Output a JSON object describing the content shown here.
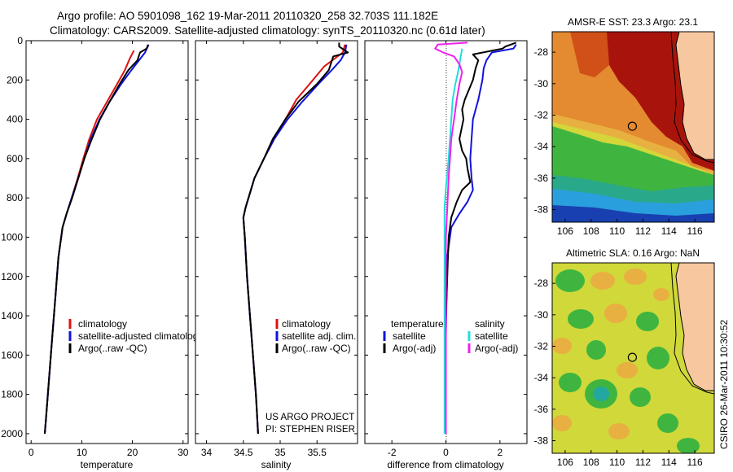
{
  "header": {
    "line1": "Argo profile: AO 5901098_162 19-Mar-2011 20110320_258 32.703S 111.182E",
    "line2": "Climatology: CARS2009. Satellite-adjusted climatology: synTS_20110320.nc (0.61d later)"
  },
  "colors": {
    "climatology": "#dd1111",
    "satellite": "#1111dd",
    "argo": "#000000",
    "argo_salinity_diff": "#ee22ee",
    "satellite_salinity_diff": "#22dddd",
    "land": "#f7c8a0"
  },
  "chart_data": [
    {
      "type": "line",
      "id": "temperature",
      "xlabel": "temperature",
      "xlim": [
        -1,
        31
      ],
      "ylim": [
        0,
        2050
      ],
      "y_reversed": true,
      "xticks": [
        0,
        10,
        20,
        30
      ],
      "yticks": [
        0,
        200,
        400,
        600,
        800,
        1000,
        1200,
        1400,
        1600,
        1800,
        2000
      ],
      "legend": [
        "climatology",
        "satellite-adjusted climatology",
        "Argo(..raw -QC)"
      ],
      "series": [
        {
          "name": "climatology",
          "color": "climatology",
          "points": [
            [
              20.3,
              50
            ],
            [
              19.5,
              90
            ],
            [
              18.5,
              150
            ],
            [
              17,
              220
            ],
            [
              15,
              310
            ],
            [
              13,
              400
            ],
            [
              11.5,
              500
            ],
            [
              10.3,
              600
            ],
            [
              9.2,
              700
            ],
            [
              8,
              800
            ],
            [
              7,
              880
            ],
            [
              6.2,
              950
            ],
            [
              5.4,
              1100
            ],
            [
              4.8,
              1300
            ],
            [
              4.2,
              1500
            ],
            [
              3.6,
              1700
            ],
            [
              3,
              1900
            ],
            [
              2.7,
              2000
            ]
          ]
        },
        {
          "name": "satellite-adjusted climatology",
          "color": "satellite",
          "points": [
            [
              23.2,
              20
            ],
            [
              22.5,
              60
            ],
            [
              21.3,
              100
            ],
            [
              19.8,
              150
            ],
            [
              17.8,
              220
            ],
            [
              15.5,
              310
            ],
            [
              13.5,
              400
            ],
            [
              11.8,
              500
            ],
            [
              10.5,
              600
            ],
            [
              9.3,
              700
            ],
            [
              8,
              800
            ],
            [
              7,
              880
            ],
            [
              6.2,
              950
            ],
            [
              5.4,
              1100
            ],
            [
              4.8,
              1300
            ],
            [
              4.2,
              1500
            ],
            [
              3.6,
              1700
            ],
            [
              3,
              1900
            ],
            [
              2.7,
              2000
            ]
          ]
        },
        {
          "name": "Argo(..raw -QC)",
          "color": "argo",
          "points": [
            [
              23.1,
              20
            ],
            [
              22.8,
              40
            ],
            [
              21.5,
              60
            ],
            [
              21,
              100
            ],
            [
              19.2,
              150
            ],
            [
              17.5,
              220
            ],
            [
              15.5,
              310
            ],
            [
              13.6,
              400
            ],
            [
              12,
              500
            ],
            [
              10.5,
              600
            ],
            [
              9.3,
              700
            ],
            [
              8.1,
              800
            ],
            [
              7,
              880
            ],
            [
              6.2,
              950
            ],
            [
              5.4,
              1100
            ],
            [
              4.8,
              1300
            ],
            [
              4.2,
              1500
            ],
            [
              3.6,
              1700
            ],
            [
              3,
              1900
            ],
            [
              2.7,
              2000
            ]
          ]
        }
      ]
    },
    {
      "type": "line",
      "id": "salinity",
      "xlabel": "salinity",
      "xlim": [
        33.85,
        36.05
      ],
      "ylim": [
        0,
        2050
      ],
      "y_reversed": true,
      "xticks": [
        34,
        34.5,
        35,
        35.5
      ],
      "legend": [
        "climatology",
        "satellite adj. clim.",
        "Argo(..raw -QC)"
      ],
      "annotations": [
        "US ARGO PROJECT",
        "PI: STEPHEN RISER"
      ],
      "series": [
        {
          "name": "climatology",
          "color": "climatology",
          "points": [
            [
              35.88,
              20
            ],
            [
              35.85,
              60
            ],
            [
              35.6,
              130
            ],
            [
              35.4,
              220
            ],
            [
              35.22,
              300
            ],
            [
              35.07,
              400
            ],
            [
              34.92,
              500
            ],
            [
              34.78,
              600
            ],
            [
              34.65,
              700
            ],
            [
              34.57,
              800
            ],
            [
              34.53,
              850
            ],
            [
              34.5,
              900
            ],
            [
              34.52,
              1000
            ],
            [
              34.55,
              1200
            ],
            [
              34.59,
              1400
            ],
            [
              34.63,
              1600
            ],
            [
              34.67,
              1800
            ],
            [
              34.7,
              2000
            ]
          ]
        },
        {
          "name": "satellite adj. clim.",
          "color": "satellite",
          "points": [
            [
              35.9,
              20
            ],
            [
              35.88,
              60
            ],
            [
              35.82,
              100
            ],
            [
              35.7,
              150
            ],
            [
              35.52,
              220
            ],
            [
              35.3,
              310
            ],
            [
              35.1,
              400
            ],
            [
              34.92,
              500
            ],
            [
              34.78,
              600
            ],
            [
              34.65,
              700
            ],
            [
              34.57,
              800
            ],
            [
              34.53,
              850
            ],
            [
              34.5,
              900
            ],
            [
              34.52,
              1000
            ],
            [
              34.55,
              1200
            ],
            [
              34.59,
              1400
            ],
            [
              34.63,
              1600
            ],
            [
              34.67,
              1800
            ],
            [
              34.7,
              2000
            ]
          ]
        },
        {
          "name": "Argo(..raw -QC)",
          "color": "argo",
          "points": [
            [
              35.8,
              10
            ],
            [
              35.8,
              30
            ],
            [
              35.92,
              60
            ],
            [
              35.72,
              80
            ],
            [
              35.66,
              150
            ],
            [
              35.5,
              220
            ],
            [
              35.25,
              310
            ],
            [
              35.07,
              400
            ],
            [
              34.9,
              500
            ],
            [
              34.78,
              600
            ],
            [
              34.65,
              700
            ],
            [
              34.57,
              800
            ],
            [
              34.53,
              850
            ],
            [
              34.5,
              900
            ],
            [
              34.52,
              1000
            ],
            [
              34.55,
              1200
            ],
            [
              34.59,
              1400
            ],
            [
              34.63,
              1600
            ],
            [
              34.67,
              1800
            ],
            [
              34.7,
              2000
            ]
          ]
        }
      ]
    },
    {
      "type": "line",
      "id": "difference",
      "xlabel": "difference from climatology",
      "xlim": [
        -3,
        3
      ],
      "ylim": [
        0,
        2050
      ],
      "y_reversed": true,
      "xticks": [
        -2,
        0,
        2
      ],
      "legend_temperature_header": "temperature",
      "legend_salinity_header": "salinity",
      "legend": [
        "satellite",
        "Argo(-adj)",
        "satellite",
        "Argo(-adj)"
      ],
      "series": [
        {
          "name": "satellite (temperature)",
          "color": "satellite",
          "points": [
            [
              2.6,
              20
            ],
            [
              2.5,
              40
            ],
            [
              1.7,
              60
            ],
            [
              1.5,
              100
            ],
            [
              1.4,
              140
            ],
            [
              1.35,
              200
            ],
            [
              1.2,
              300
            ],
            [
              1,
              400
            ],
            [
              0.95,
              500
            ],
            [
              0.9,
              600
            ],
            [
              0.95,
              700
            ],
            [
              1,
              760
            ],
            [
              0.8,
              820
            ],
            [
              0.5,
              880
            ],
            [
              0.2,
              950
            ],
            [
              0.05,
              1100
            ],
            [
              0,
              1500
            ],
            [
              0,
              2000
            ]
          ]
        },
        {
          "name": "Argo(-adj) (temperature)",
          "color": "argo",
          "points": [
            [
              2.6,
              10
            ],
            [
              2.2,
              30
            ],
            [
              2.1,
              40
            ],
            [
              1,
              70
            ],
            [
              1.2,
              100
            ],
            [
              1.1,
              140
            ],
            [
              1,
              200
            ],
            [
              0.85,
              250
            ],
            [
              0.7,
              300
            ],
            [
              0.6,
              350
            ],
            [
              0.65,
              400
            ],
            [
              0.5,
              500
            ],
            [
              0.6,
              560
            ],
            [
              0.75,
              600
            ],
            [
              0.8,
              650
            ],
            [
              0.9,
              720
            ],
            [
              0.6,
              760
            ],
            [
              0.4,
              820
            ],
            [
              0.2,
              900
            ],
            [
              0.1,
              1000
            ],
            [
              0.05,
              1200
            ],
            [
              0,
              1400
            ],
            [
              0,
              1600
            ],
            [
              0,
              1800
            ],
            [
              0,
              2000
            ]
          ]
        },
        {
          "name": "satellite (salinity)",
          "color": "satellite_salinity_diff",
          "points": [
            [
              0.6,
              40
            ],
            [
              0.55,
              80
            ],
            [
              0.5,
              120
            ],
            [
              0.45,
              160
            ],
            [
              0.35,
              220
            ],
            [
              0.25,
              300
            ],
            [
              0.2,
              400
            ],
            [
              0.15,
              500
            ],
            [
              0.1,
              600
            ],
            [
              0,
              750
            ],
            [
              -0.05,
              850
            ],
            [
              -0.05,
              1000
            ],
            [
              -0.05,
              1500
            ],
            [
              -0.05,
              2000
            ]
          ]
        },
        {
          "name": "Argo(-adj) (salinity)",
          "color": "argo_salinity_diff",
          "points": [
            [
              0.8,
              10
            ],
            [
              -0.3,
              20
            ],
            [
              -0.4,
              40
            ],
            [
              -0.1,
              60
            ],
            [
              0.3,
              80
            ],
            [
              0.5,
              120
            ],
            [
              0.6,
              160
            ],
            [
              0.5,
              220
            ],
            [
              0.4,
              300
            ],
            [
              0.3,
              400
            ],
            [
              0.2,
              500
            ],
            [
              0.15,
              600
            ],
            [
              0.1,
              700
            ],
            [
              0.05,
              850
            ],
            [
              0,
              1000
            ],
            [
              0,
              1200
            ],
            [
              0,
              2000
            ]
          ]
        }
      ]
    },
    {
      "type": "heatmap",
      "id": "sst_map",
      "title": "AMSR-E SST: 23.3 Argo: 23.1",
      "xlim": [
        105,
        117.5
      ],
      "ylim": [
        -38.8,
        -26.7
      ],
      "xticks": [
        106,
        108,
        110,
        112,
        114,
        116
      ],
      "yticks": [
        -28,
        -30,
        -32,
        -34,
        -36,
        -38
      ],
      "argo_position": [
        111.182,
        -32.703
      ]
    },
    {
      "type": "heatmap",
      "id": "sla_map",
      "title": "Altimetric SLA: 0.16 Argo: NaN",
      "xlim": [
        105,
        117.5
      ],
      "ylim": [
        -38.8,
        -26.7
      ],
      "xticks": [
        106,
        108,
        110,
        112,
        114,
        116
      ],
      "yticks": [
        -28,
        -30,
        -32,
        -34,
        -36,
        -38
      ],
      "argo_position": [
        111.182,
        -32.703
      ]
    }
  ],
  "footer": {
    "stamp": "CSIRO 26-Mar-2011 10:30:52"
  }
}
